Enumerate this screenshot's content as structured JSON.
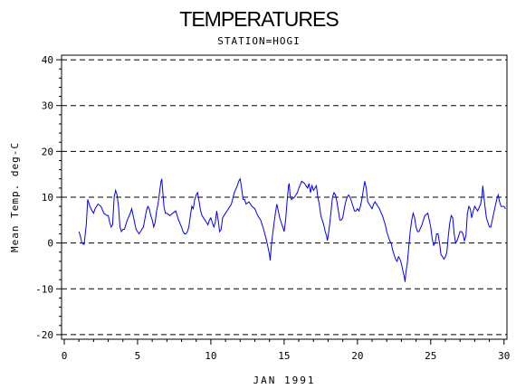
{
  "chart_data": {
    "type": "line",
    "title": "TEMPERATURES",
    "subtitle": "STATION=HOGI",
    "xlabel": "JAN 1991",
    "ylabel": "Mean Temp. deg-C",
    "xlim": [
      0,
      30.2
    ],
    "ylim": [
      -21,
      41
    ],
    "x_ticks": [
      0,
      5,
      10,
      15,
      20,
      25,
      30
    ],
    "y_ticks": [
      -20,
      -10,
      0,
      10,
      20,
      30,
      40
    ],
    "grid": "horizontal dashed",
    "series": [
      {
        "color": "#0000ff",
        "points": [
          [
            1.0,
            2.5
          ],
          [
            1.1,
            1.5
          ],
          [
            1.2,
            0.0
          ],
          [
            1.35,
            -0.3
          ],
          [
            1.5,
            4.0
          ],
          [
            1.6,
            9.5
          ],
          [
            1.75,
            8.0
          ],
          [
            1.9,
            7.0
          ],
          [
            2.0,
            6.5
          ],
          [
            2.1,
            7.5
          ],
          [
            2.3,
            8.5
          ],
          [
            2.5,
            8.0
          ],
          [
            2.7,
            6.5
          ],
          [
            2.9,
            6.0
          ],
          [
            3.0,
            6.0
          ],
          [
            3.1,
            4.5
          ],
          [
            3.2,
            3.5
          ],
          [
            3.3,
            4.0
          ],
          [
            3.4,
            10.0
          ],
          [
            3.5,
            11.5
          ],
          [
            3.6,
            10.5
          ],
          [
            3.7,
            8.0
          ],
          [
            3.8,
            3.5
          ],
          [
            3.9,
            2.5
          ],
          [
            4.0,
            3.0
          ],
          [
            4.1,
            3.0
          ],
          [
            4.3,
            5.0
          ],
          [
            4.5,
            6.5
          ],
          [
            4.6,
            7.5
          ],
          [
            4.7,
            6.0
          ],
          [
            4.8,
            4.5
          ],
          [
            4.9,
            3.0
          ],
          [
            5.0,
            2.5
          ],
          [
            5.1,
            2.0
          ],
          [
            5.2,
            2.5
          ],
          [
            5.4,
            3.5
          ],
          [
            5.6,
            7.0
          ],
          [
            5.7,
            8.0
          ],
          [
            5.8,
            7.5
          ],
          [
            5.9,
            6.0
          ],
          [
            6.0,
            5.0
          ],
          [
            6.1,
            3.5
          ],
          [
            6.2,
            4.5
          ],
          [
            6.3,
            7.0
          ],
          [
            6.4,
            8.5
          ],
          [
            6.5,
            11.0
          ],
          [
            6.6,
            13.5
          ],
          [
            6.65,
            14.0
          ],
          [
            6.7,
            12.0
          ],
          [
            6.8,
            8.0
          ],
          [
            6.9,
            6.5
          ],
          [
            7.0,
            6.5
          ],
          [
            7.2,
            6.0
          ],
          [
            7.4,
            6.5
          ],
          [
            7.6,
            7.0
          ],
          [
            7.8,
            5.0
          ],
          [
            8.0,
            3.5
          ],
          [
            8.1,
            2.5
          ],
          [
            8.2,
            2.0
          ],
          [
            8.3,
            2.0
          ],
          [
            8.4,
            2.5
          ],
          [
            8.5,
            3.5
          ],
          [
            8.6,
            6.0
          ],
          [
            8.7,
            8.0
          ],
          [
            8.8,
            7.5
          ],
          [
            8.9,
            9.5
          ],
          [
            9.0,
            10.5
          ],
          [
            9.1,
            11.0
          ],
          [
            9.2,
            9.0
          ],
          [
            9.3,
            7.0
          ],
          [
            9.4,
            6.0
          ],
          [
            9.5,
            5.5
          ],
          [
            9.6,
            5.0
          ],
          [
            9.7,
            4.5
          ],
          [
            9.8,
            4.0
          ],
          [
            9.9,
            5.0
          ],
          [
            10.0,
            5.5
          ],
          [
            10.1,
            4.5
          ],
          [
            10.2,
            3.5
          ],
          [
            10.3,
            4.5
          ],
          [
            10.4,
            7.0
          ],
          [
            10.5,
            5.0
          ],
          [
            10.6,
            2.5
          ],
          [
            10.7,
            3.0
          ],
          [
            10.8,
            5.5
          ],
          [
            11.0,
            6.5
          ],
          [
            11.2,
            7.5
          ],
          [
            11.4,
            8.5
          ],
          [
            11.6,
            11.0
          ],
          [
            11.8,
            12.5
          ],
          [
            11.9,
            13.5
          ],
          [
            12.0,
            14.0
          ],
          [
            12.1,
            12.0
          ],
          [
            12.2,
            9.5
          ],
          [
            12.3,
            9.5
          ],
          [
            12.4,
            8.5
          ],
          [
            12.6,
            9.0
          ],
          [
            12.8,
            8.0
          ],
          [
            13.0,
            7.5
          ],
          [
            13.2,
            6.0
          ],
          [
            13.4,
            5.0
          ],
          [
            13.6,
            3.0
          ],
          [
            13.8,
            0.5
          ],
          [
            13.9,
            -1.0
          ],
          [
            14.0,
            -2.5
          ],
          [
            14.05,
            -3.8
          ],
          [
            14.1,
            -1.5
          ],
          [
            14.2,
            1.5
          ],
          [
            14.3,
            4.0
          ],
          [
            14.4,
            6.5
          ],
          [
            14.5,
            8.5
          ],
          [
            14.6,
            7.0
          ],
          [
            14.7,
            5.5
          ],
          [
            14.8,
            4.5
          ],
          [
            14.9,
            3.5
          ],
          [
            15.0,
            2.5
          ],
          [
            15.1,
            5.0
          ],
          [
            15.2,
            9.0
          ],
          [
            15.3,
            12.5
          ],
          [
            15.35,
            13.0
          ],
          [
            15.4,
            10.5
          ],
          [
            15.5,
            9.5
          ],
          [
            15.7,
            10.0
          ],
          [
            15.9,
            11.0
          ],
          [
            16.0,
            12.0
          ],
          [
            16.2,
            13.5
          ],
          [
            16.4,
            13.0
          ],
          [
            16.6,
            12.0
          ],
          [
            16.7,
            13.0
          ],
          [
            16.8,
            11.0
          ],
          [
            16.9,
            12.5
          ],
          [
            17.0,
            11.5
          ],
          [
            17.2,
            12.5
          ],
          [
            17.3,
            10.0
          ],
          [
            17.4,
            8.5
          ],
          [
            17.5,
            6.0
          ],
          [
            17.6,
            5.0
          ],
          [
            17.7,
            4.0
          ],
          [
            17.8,
            2.5
          ],
          [
            17.9,
            1.5
          ],
          [
            17.95,
            0.5
          ],
          [
            18.0,
            1.5
          ],
          [
            18.1,
            4.0
          ],
          [
            18.2,
            7.0
          ],
          [
            18.3,
            10.0
          ],
          [
            18.4,
            11.0
          ],
          [
            18.5,
            10.5
          ],
          [
            18.6,
            9.0
          ],
          [
            18.7,
            7.0
          ],
          [
            18.8,
            5.0
          ],
          [
            18.9,
            5.0
          ],
          [
            19.0,
            5.5
          ],
          [
            19.1,
            7.5
          ],
          [
            19.2,
            9.0
          ],
          [
            19.3,
            10.0
          ],
          [
            19.4,
            10.5
          ],
          [
            19.5,
            10.0
          ],
          [
            19.6,
            9.0
          ],
          [
            19.7,
            8.0
          ],
          [
            19.8,
            7.0
          ],
          [
            19.9,
            7.0
          ],
          [
            20.0,
            7.5
          ],
          [
            20.1,
            7.0
          ],
          [
            20.2,
            8.0
          ],
          [
            20.3,
            9.5
          ],
          [
            20.4,
            11.5
          ],
          [
            20.5,
            13.5
          ],
          [
            20.6,
            12.0
          ],
          [
            20.7,
            9.0
          ],
          [
            20.8,
            8.5
          ],
          [
            20.9,
            8.0
          ],
          [
            21.0,
            7.5
          ],
          [
            21.1,
            8.5
          ],
          [
            21.2,
            9.0
          ],
          [
            21.3,
            8.5
          ],
          [
            21.5,
            7.5
          ],
          [
            21.7,
            6.0
          ],
          [
            21.9,
            4.0
          ],
          [
            22.0,
            2.5
          ],
          [
            22.1,
            1.5
          ],
          [
            22.2,
            0.5
          ],
          [
            22.3,
            0.0
          ],
          [
            22.4,
            -1.5
          ],
          [
            22.5,
            -2.5
          ],
          [
            22.6,
            -3.5
          ],
          [
            22.7,
            -4.0
          ],
          [
            22.8,
            -3.0
          ],
          [
            22.9,
            -3.5
          ],
          [
            23.0,
            -4.5
          ],
          [
            23.1,
            -6.0
          ],
          [
            23.2,
            -7.5
          ],
          [
            23.25,
            -8.5
          ],
          [
            23.3,
            -6.5
          ],
          [
            23.4,
            -4.5
          ],
          [
            23.5,
            -1.0
          ],
          [
            23.6,
            2.5
          ],
          [
            23.7,
            5.0
          ],
          [
            23.8,
            6.5
          ],
          [
            23.9,
            5.5
          ],
          [
            24.0,
            3.5
          ],
          [
            24.1,
            2.5
          ],
          [
            24.2,
            2.5
          ],
          [
            24.4,
            4.0
          ],
          [
            24.6,
            6.0
          ],
          [
            24.8,
            6.5
          ],
          [
            24.9,
            5.0
          ],
          [
            25.0,
            3.5
          ],
          [
            25.1,
            1.0
          ],
          [
            25.2,
            -0.5
          ],
          [
            25.3,
            0.0
          ],
          [
            25.4,
            2.0
          ],
          [
            25.5,
            2.0
          ],
          [
            25.6,
            0.0
          ],
          [
            25.7,
            -2.5
          ],
          [
            25.8,
            -3.0
          ],
          [
            25.9,
            -3.5
          ],
          [
            26.0,
            -3.0
          ],
          [
            26.1,
            -2.0
          ],
          [
            26.2,
            1.5
          ],
          [
            26.3,
            4.5
          ],
          [
            26.4,
            6.0
          ],
          [
            26.5,
            5.5
          ],
          [
            26.6,
            2.0
          ],
          [
            26.7,
            0.0
          ],
          [
            26.8,
            0.5
          ],
          [
            26.9,
            1.5
          ],
          [
            27.0,
            2.5
          ],
          [
            27.1,
            2.5
          ],
          [
            27.2,
            2.0
          ],
          [
            27.3,
            0.5
          ],
          [
            27.4,
            1.5
          ],
          [
            27.5,
            6.5
          ],
          [
            27.6,
            8.0
          ],
          [
            27.7,
            7.5
          ],
          [
            27.8,
            5.5
          ],
          [
            27.9,
            7.0
          ],
          [
            28.0,
            8.0
          ],
          [
            28.2,
            7.0
          ],
          [
            28.4,
            8.5
          ],
          [
            28.5,
            10.5
          ],
          [
            28.55,
            12.5
          ],
          [
            28.6,
            11.0
          ],
          [
            28.7,
            8.0
          ],
          [
            28.8,
            5.5
          ],
          [
            28.9,
            4.5
          ],
          [
            29.0,
            3.5
          ],
          [
            29.1,
            3.5
          ],
          [
            29.2,
            5.0
          ],
          [
            29.3,
            6.5
          ],
          [
            29.4,
            8.0
          ],
          [
            29.5,
            9.5
          ],
          [
            29.6,
            10.5
          ],
          [
            29.7,
            9.0
          ],
          [
            29.8,
            8.0
          ],
          [
            29.9,
            8.0
          ],
          [
            30.0,
            8.0
          ],
          [
            30.1,
            7.5
          ]
        ]
      }
    ]
  }
}
